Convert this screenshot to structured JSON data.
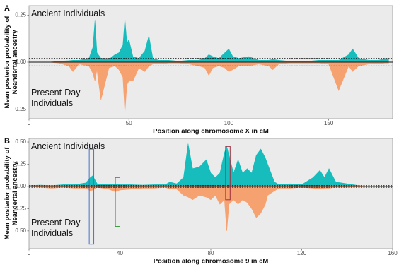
{
  "chart_data": [
    {
      "type": "area",
      "panel": "A",
      "xlabel": "Position along chromosome X in cM",
      "ylabel": "Mean posterior probability of Neandertal ancestry",
      "xlim": [
        0,
        182
      ],
      "xticks": [
        0,
        50,
        100,
        150
      ],
      "ylim": [
        -0.3,
        0.3
      ],
      "yticks": [
        {
          "value": 0.25,
          "label": "0.25"
        },
        {
          "value": 0,
          "label": "0.00"
        },
        {
          "value": -0.25,
          "label": "0.25"
        }
      ],
      "thresholds": [
        0.02,
        -0.02
      ],
      "x": [
        0,
        5,
        10,
        15,
        20,
        22,
        25,
        30,
        32,
        33,
        34,
        36,
        40,
        43,
        45,
        47,
        48,
        49,
        50,
        52,
        55,
        58,
        60,
        62,
        65,
        70,
        75,
        80,
        85,
        88,
        90,
        92,
        95,
        98,
        100,
        102,
        105,
        110,
        115,
        120,
        122,
        125,
        130,
        135,
        140,
        145,
        150,
        155,
        160,
        162,
        165,
        170,
        175,
        178,
        180
      ],
      "series": [
        {
          "name": "Ancient Individuals",
          "color": "#17bcbc",
          "values": [
            0,
            0,
            0,
            0.005,
            0.008,
            0.01,
            0.01,
            0.02,
            0.08,
            0.22,
            0.05,
            0.02,
            0.015,
            0.04,
            0.05,
            0.09,
            0.23,
            0.1,
            0.12,
            0.03,
            0.02,
            0.06,
            0.14,
            0.02,
            0.01,
            0.01,
            0.005,
            0.01,
            0.01,
            0.02,
            0.04,
            0.03,
            0.02,
            0.05,
            0.07,
            0.03,
            0.02,
            0.03,
            0.01,
            0.01,
            0.015,
            0.01,
            0.005,
            0.005,
            0.005,
            0.01,
            0.01,
            0.01,
            0.04,
            0.07,
            0.02,
            0.01,
            0.01,
            0.02,
            0.02
          ]
        },
        {
          "name": "Present-Day Individuals",
          "color": "#f6a170",
          "values": [
            0,
            0,
            0,
            -0.005,
            -0.02,
            -0.05,
            -0.01,
            -0.02,
            -0.06,
            -0.1,
            -0.04,
            -0.2,
            -0.03,
            -0.02,
            -0.04,
            -0.08,
            -0.27,
            -0.12,
            -0.1,
            -0.1,
            -0.03,
            -0.05,
            -0.02,
            -0.01,
            -0.01,
            -0.005,
            -0.005,
            -0.01,
            -0.02,
            -0.03,
            -0.07,
            -0.03,
            -0.02,
            -0.03,
            -0.05,
            -0.04,
            -0.02,
            -0.02,
            -0.01,
            -0.02,
            -0.04,
            -0.01,
            -0.005,
            -0.005,
            -0.005,
            -0.005,
            -0.01,
            -0.15,
            -0.02,
            -0.05,
            -0.02,
            -0.01,
            -0.01,
            -0.005,
            -0.005
          ]
        }
      ]
    },
    {
      "type": "area",
      "panel": "B",
      "xlabel": "Position along chromosome 9 in cM",
      "ylabel": "Mean posterior probability of Neandertal ancestry",
      "xlim": [
        0,
        160
      ],
      "xticks": [
        0,
        40,
        80,
        120,
        160
      ],
      "ylim": [
        -0.7,
        0.54
      ],
      "yticks": [
        {
          "value": 0.5,
          "label": "0.50"
        },
        {
          "value": 0.25,
          "label": "0.25"
        },
        {
          "value": 0,
          "label": "0.00"
        },
        {
          "value": -0.25,
          "label": "0.25"
        },
        {
          "value": -0.5,
          "label": "0.50"
        }
      ],
      "thresholds": [
        0.01,
        -0.01
      ],
      "x": [
        0,
        5,
        10,
        15,
        20,
        25,
        27,
        28,
        30,
        35,
        38,
        40,
        45,
        50,
        55,
        60,
        62,
        65,
        68,
        70,
        72,
        75,
        78,
        80,
        82,
        84,
        86,
        87,
        88,
        90,
        92,
        94,
        96,
        98,
        100,
        102,
        104,
        105,
        108,
        110,
        115,
        120,
        125,
        128,
        130,
        132,
        135,
        140,
        145,
        150,
        155,
        160
      ],
      "series": [
        {
          "name": "Ancient Individuals",
          "color": "#17bcbc",
          "values": [
            0.01,
            0.015,
            0.01,
            0.02,
            0.02,
            0.04,
            0.1,
            0.12,
            0.03,
            0.02,
            0.03,
            0.02,
            0.02,
            0.015,
            0.02,
            0.02,
            0.05,
            0.03,
            0.1,
            0.48,
            0.2,
            0.22,
            0.3,
            0.15,
            0.1,
            0.15,
            0.38,
            0.45,
            0.35,
            0.15,
            0.3,
            0.15,
            0.2,
            0.15,
            0.35,
            0.42,
            0.32,
            0.25,
            0.05,
            0.02,
            0.03,
            0.02,
            0.1,
            0.18,
            0.1,
            0.2,
            0.05,
            0.03,
            0.01,
            0,
            0,
            0
          ]
        },
        {
          "name": "Present-Day Individuals",
          "color": "#f6a170",
          "values": [
            0,
            -0.01,
            -0.02,
            -0.01,
            -0.02,
            -0.02,
            -0.05,
            -0.04,
            -0.01,
            -0.03,
            -0.06,
            -0.04,
            -0.03,
            -0.02,
            -0.02,
            -0.01,
            -0.03,
            -0.03,
            -0.1,
            -0.12,
            -0.15,
            -0.1,
            -0.12,
            -0.15,
            -0.1,
            -0.2,
            -0.15,
            -0.5,
            -0.2,
            -0.15,
            -0.2,
            -0.15,
            -0.18,
            -0.25,
            -0.35,
            -0.3,
            -0.2,
            -0.1,
            -0.05,
            -0.02,
            -0.02,
            -0.01,
            -0.02,
            -0.03,
            -0.02,
            -0.02,
            -0.01,
            -0.01,
            -0.005,
            0,
            0,
            0
          ]
        }
      ],
      "highlights": [
        {
          "x": [
            26.5,
            28.5
          ],
          "y": [
            0.42,
            -0.65
          ],
          "color": "#4a72c4"
        },
        {
          "x": [
            38,
            40
          ],
          "y": [
            0.1,
            -0.45
          ],
          "color": "#3a9a3a"
        },
        {
          "x": [
            86.5,
            88.5
          ],
          "y": [
            0.45,
            -0.15
          ],
          "color": "#a03040"
        }
      ]
    }
  ]
}
